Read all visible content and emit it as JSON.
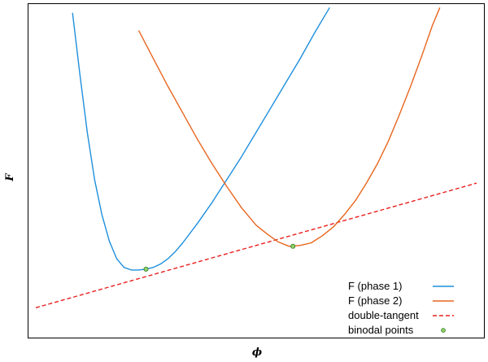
{
  "chart_data": {
    "type": "line",
    "xlabel": "ϕ",
    "ylabel": "F",
    "xlim": [
      -0.12,
      1.12
    ],
    "ylim": [
      -0.3,
      1.6
    ],
    "grid": false,
    "legend_position": "bottom-right",
    "series": [
      {
        "name": "F (phase 1)",
        "color": "#1f8fdc",
        "style": "solid",
        "x": [
          0.0,
          0.02,
          0.04,
          0.06,
          0.08,
          0.1,
          0.12,
          0.14,
          0.16,
          0.18,
          0.2,
          0.22,
          0.24,
          0.26,
          0.28,
          0.3,
          0.34,
          0.38,
          0.42,
          0.46,
          0.5,
          0.54,
          0.58,
          0.62,
          0.66,
          0.7
        ],
        "y": [
          1.55,
          1.2,
          0.87,
          0.6,
          0.4,
          0.25,
          0.15,
          0.1,
          0.085,
          0.085,
          0.09,
          0.1,
          0.12,
          0.15,
          0.19,
          0.24,
          0.35,
          0.47,
          0.6,
          0.73,
          0.87,
          1.01,
          1.15,
          1.29,
          1.44,
          1.58
        ]
      },
      {
        "name": "F (phase 2)",
        "color": "#e8661e",
        "style": "solid",
        "x": [
          0.18,
          0.22,
          0.26,
          0.3,
          0.34,
          0.38,
          0.42,
          0.46,
          0.5,
          0.53,
          0.56,
          0.59,
          0.62,
          0.65,
          0.68,
          0.71,
          0.74,
          0.77,
          0.8,
          0.83,
          0.86,
          0.89,
          0.92,
          0.95,
          0.98,
          1.0
        ],
        "y": [
          1.45,
          1.29,
          1.13,
          0.98,
          0.83,
          0.69,
          0.56,
          0.44,
          0.34,
          0.29,
          0.245,
          0.22,
          0.225,
          0.24,
          0.28,
          0.33,
          0.4,
          0.48,
          0.58,
          0.69,
          0.82,
          0.97,
          1.13,
          1.3,
          1.48,
          1.58
        ]
      },
      {
        "name": "double-tangent",
        "color": "#e8201e",
        "style": "dashed",
        "x": [
          -0.1,
          1.1
        ],
        "y": [
          -0.13,
          0.58
        ]
      },
      {
        "name": "binodal points",
        "color": "#2ca02c",
        "style": "points",
        "x": [
          0.2,
          0.6
        ],
        "y": [
          0.09,
          0.22
        ]
      }
    ]
  }
}
